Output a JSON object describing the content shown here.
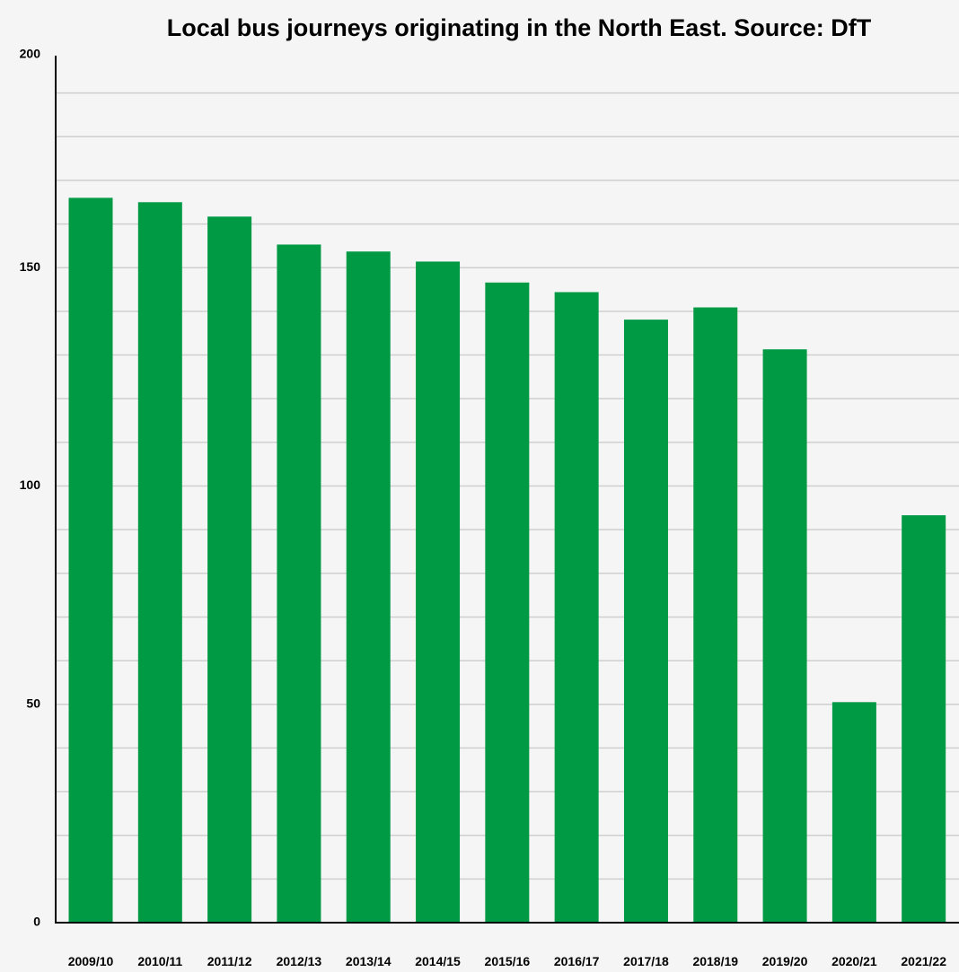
{
  "chart_data": {
    "type": "bar",
    "title": "Local bus journeys originating in the North East. Source: DfT",
    "xlabel": "",
    "ylabel": "",
    "categories": [
      "2009/10",
      "2010/11",
      "2011/12",
      "2012/13",
      "2013/14",
      "2014/15",
      "2015/16",
      "2016/17",
      "2017/18",
      "2018/19",
      "2019/20",
      "2020/21",
      "2021/22"
    ],
    "values": [
      166,
      165,
      161.7,
      155.3,
      153.7,
      151.4,
      146.6,
      144.4,
      138.1,
      140.9,
      131.3,
      50.5,
      93.3
    ],
    "ylim": [
      0,
      200
    ],
    "yticks": [
      "0",
      "50",
      "100",
      "150",
      "200"
    ],
    "minor_grid_step": 10,
    "grid": true,
    "legend": "none",
    "bar_color": "#009a44"
  }
}
